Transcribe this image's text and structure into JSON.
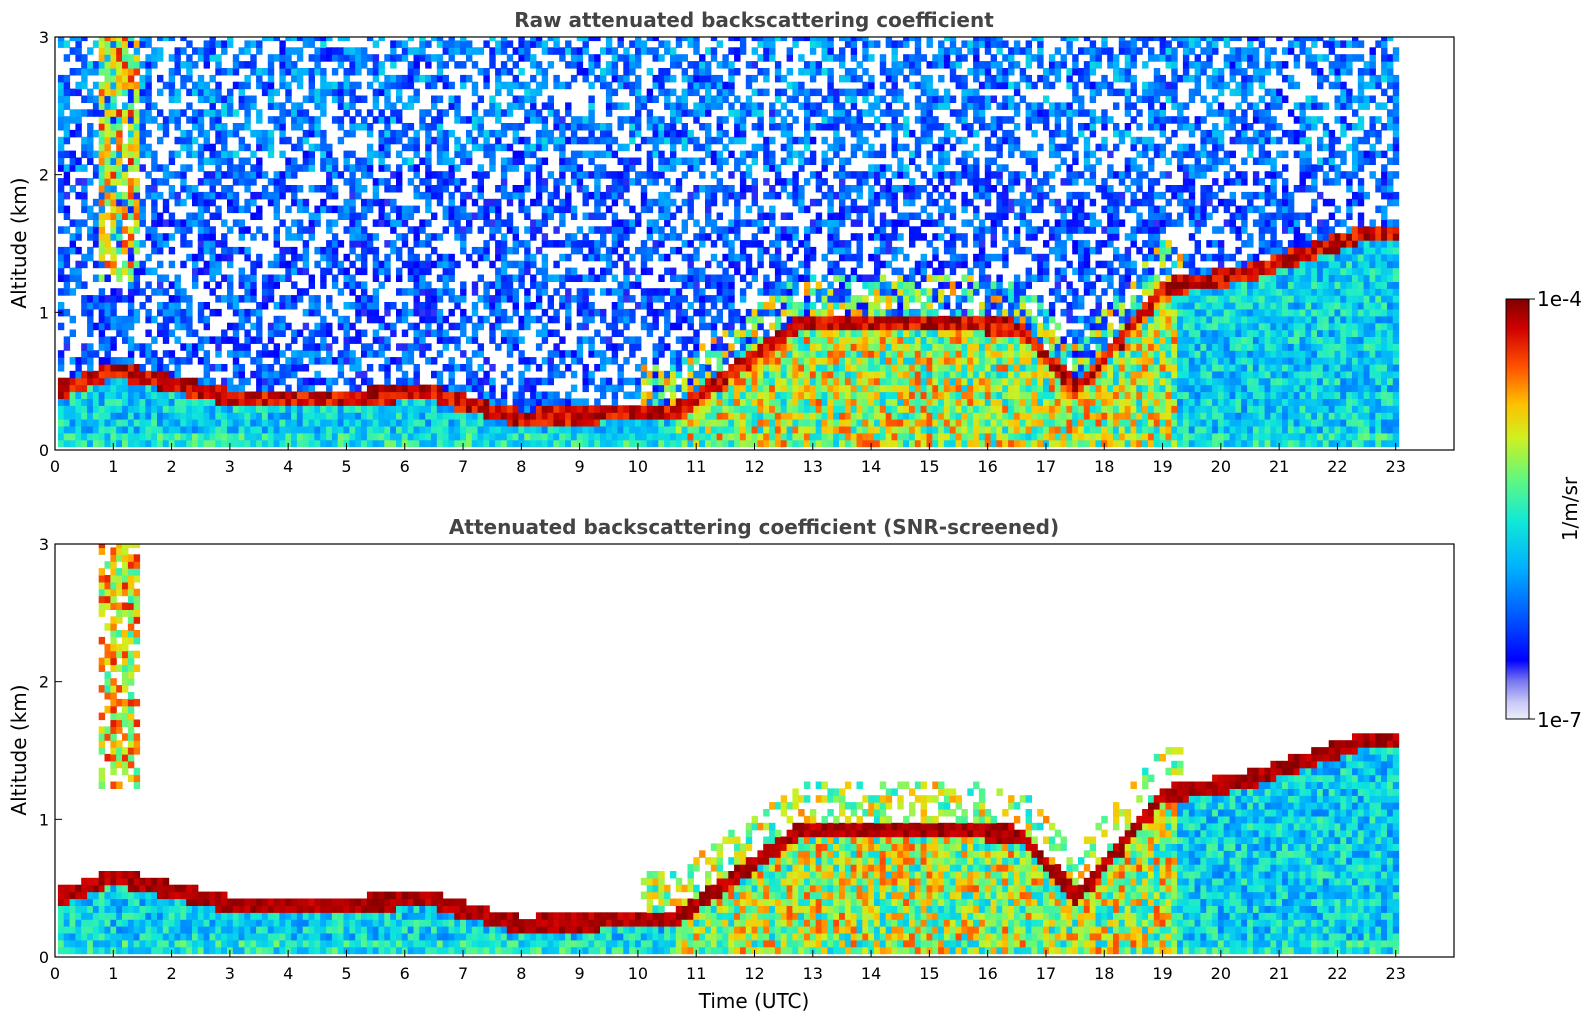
{
  "chart_data": [
    {
      "type": "heatmap",
      "title": "Raw attenuated backscattering coefficient",
      "xlabel": "",
      "ylabel": "Altitude (km)",
      "xlim": [
        0,
        24
      ],
      "ylim": [
        0,
        3
      ],
      "xticks": [
        "0",
        "1",
        "2",
        "3",
        "4",
        "5",
        "6",
        "7",
        "8",
        "9",
        "10",
        "11",
        "12",
        "13",
        "14",
        "15",
        "16",
        "17",
        "18",
        "19",
        "20",
        "21",
        "22",
        "23"
      ],
      "yticks": [
        "0",
        "1",
        "2",
        "3"
      ],
      "data_end_time": 23,
      "noise_level": "high",
      "boundary_layer_top_km": [
        {
          "t": 0,
          "h": 0.4
        },
        {
          "t": 1,
          "h": 0.55
        },
        {
          "t": 2,
          "h": 0.45
        },
        {
          "t": 3,
          "h": 0.35
        },
        {
          "t": 5.2,
          "h": 0.35
        },
        {
          "t": 6.3,
          "h": 0.4
        },
        {
          "t": 7,
          "h": 0.3
        },
        {
          "t": 8,
          "h": 0.2
        },
        {
          "t": 9,
          "h": 0.22
        },
        {
          "t": 10.6,
          "h": 0.25
        },
        {
          "t": 12.8,
          "h": 0.9
        },
        {
          "t": 15.4,
          "h": 0.9
        },
        {
          "t": 16.5,
          "h": 0.85
        },
        {
          "t": 17.5,
          "h": 0.4
        },
        {
          "t": 19.0,
          "h": 1.15
        },
        {
          "t": 20.4,
          "h": 1.25
        },
        {
          "t": 22.5,
          "h": 1.55
        }
      ]
    },
    {
      "type": "heatmap",
      "title": "Attenuated backscattering coefficient (SNR-screened)",
      "xlabel": "Time (UTC)",
      "ylabel": "Altitude (km)",
      "xlim": [
        0,
        24
      ],
      "ylim": [
        0,
        3
      ],
      "xticks": [
        "0",
        "1",
        "2",
        "3",
        "4",
        "5",
        "6",
        "7",
        "8",
        "9",
        "10",
        "11",
        "12",
        "13",
        "14",
        "15",
        "16",
        "17",
        "18",
        "19",
        "20",
        "21",
        "22",
        "23"
      ],
      "yticks": [
        "0",
        "1",
        "2",
        "3"
      ],
      "data_end_time": 23,
      "noise_level": "screened"
    }
  ],
  "colorbar": {
    "label": "1/m/sr",
    "max_label": "1e-4",
    "min_label": "1e-7",
    "scale": "log",
    "range": [
      1e-07,
      0.0001
    ]
  }
}
